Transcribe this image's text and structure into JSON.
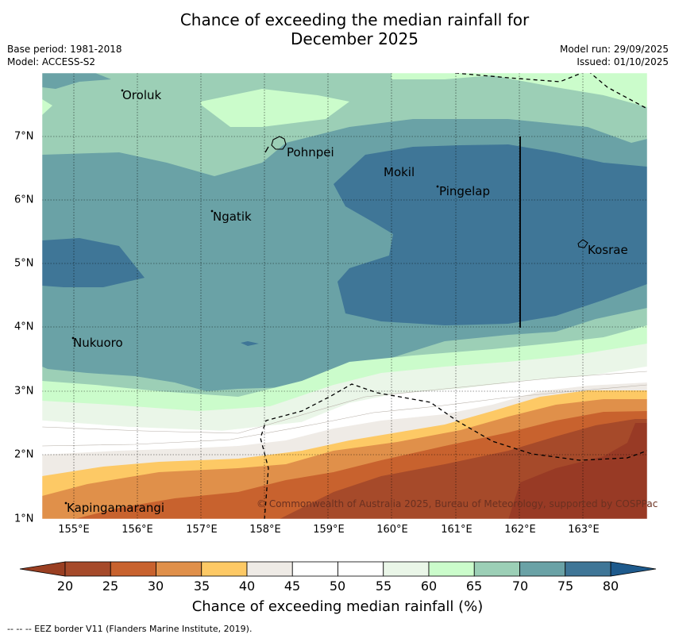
{
  "title_line1": "Chance of exceeding the median rainfall for",
  "title_line2": "December 2025",
  "meta": {
    "base_period": "Base period: 1981-2018",
    "model": "Model: ACCESS-S2",
    "model_run": "Model run: 29/09/2025",
    "issued": "Issued: 01/10/2025"
  },
  "axes": {
    "x_ticks": [
      "155°E",
      "156°E",
      "157°E",
      "158°E",
      "159°E",
      "160°E",
      "161°E",
      "162°E",
      "163°E"
    ],
    "y_ticks": [
      "7°N",
      "6°N",
      "5°N",
      "4°N",
      "3°N",
      "2°N",
      "1°N"
    ]
  },
  "places": [
    "Oroluk",
    "Pohnpei",
    "Mokil",
    "Pingelap",
    "Ngatik",
    "Kosrae",
    "Nukuoro",
    "Kapingamarangi"
  ],
  "copyright": "© Commonwealth of Australia 2025, Bureau of Meteorology, supported by COSPPac",
  "colorbar": {
    "labels": [
      "20",
      "25",
      "30",
      "35",
      "40",
      "45",
      "50",
      "55",
      "60",
      "65",
      "70",
      "75",
      "80"
    ],
    "colors": [
      "#a64a2a",
      "#c8622e",
      "#e0904a",
      "#fdc965",
      "#efebe6",
      "#ffffff",
      "#ffffff",
      "#eaf6e8",
      "#cbfccb",
      "#9ccfb6",
      "#6aa2a6",
      "#3f7697"
    ],
    "extend_low_color": "#9a3f22",
    "extend_high_color": "#1e5a8c",
    "title": "Chance of exceeding median rainfall (%)"
  },
  "footnote": "--  --  -- EEZ border V11 (Flanders Marine Institute, 2019)."
}
